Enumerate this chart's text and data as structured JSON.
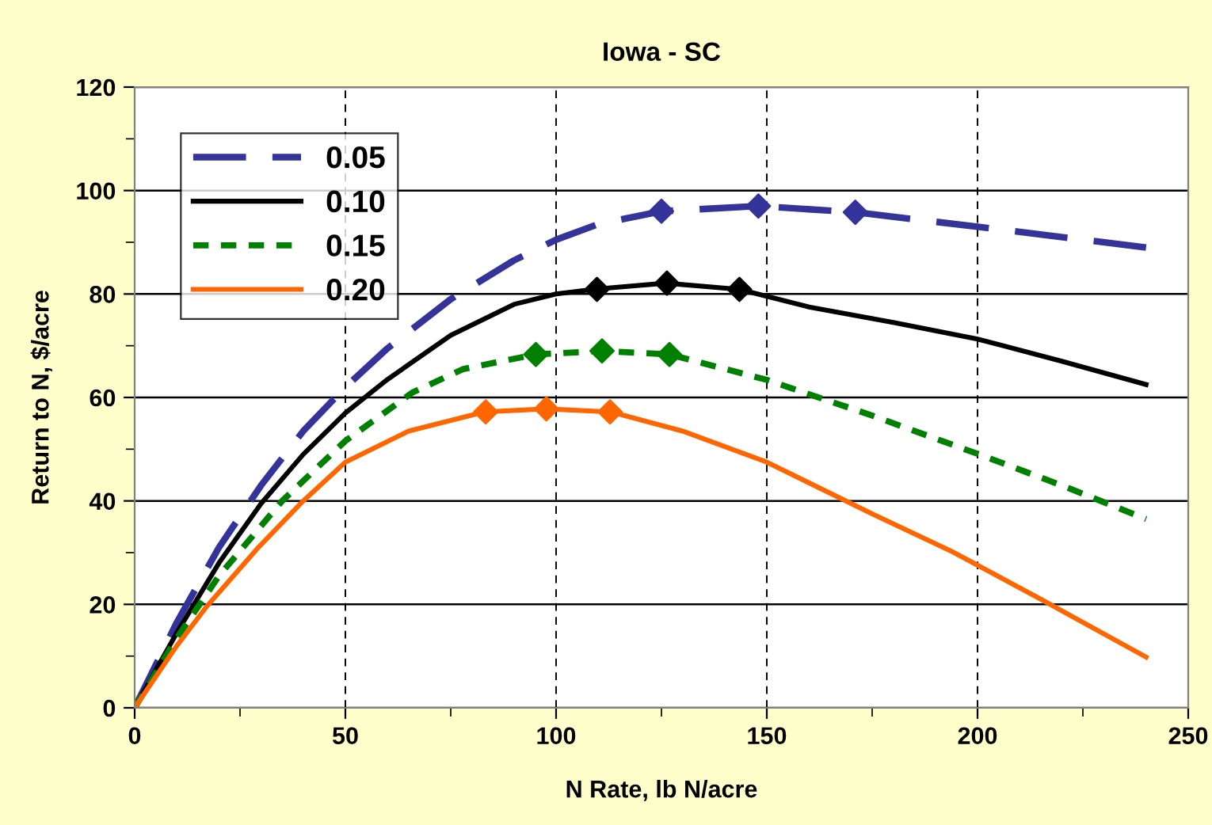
{
  "chart_data": {
    "type": "line",
    "title": "Iowa - SC",
    "xlabel": "N Rate, lb N/acre",
    "ylabel": "Return to N, $/acre",
    "xlim": [
      0,
      250
    ],
    "ylim": [
      0,
      120
    ],
    "xticks": [
      0,
      {
        "value": 25,
        "label": null
      },
      50,
      {
        "value": 75,
        "label": null
      },
      100,
      {
        "value": 125,
        "label": null
      },
      150,
      {
        "value": 175,
        "label": null
      },
      200,
      {
        "value": 225,
        "label": null
      },
      250
    ],
    "yticks": [
      0,
      {
        "value": 10,
        "label": null
      },
      20,
      {
        "value": 30,
        "label": null
      },
      40,
      {
        "value": 50,
        "label": null
      },
      60,
      {
        "value": 70,
        "label": null
      },
      80,
      {
        "value": 90,
        "label": null
      },
      100,
      {
        "value": 110,
        "label": null
      },
      120
    ],
    "grid": true,
    "legend": "top left",
    "series": [
      {
        "name": "0.05",
        "color": "#333399",
        "line_style": "dashed",
        "x": [
          0,
          10,
          20,
          30,
          40,
          50,
          60,
          75,
          90,
          100,
          110,
          125,
          148,
          171,
          200,
          240
        ],
        "values": [
          0,
          16.5,
          31,
          43,
          53.5,
          62,
          69.5,
          79,
          86.5,
          90.5,
          93.5,
          96,
          97,
          95.8,
          93,
          89
        ]
      },
      {
        "name": "0.10",
        "color": "#000000",
        "line_style": "solid",
        "x": [
          0,
          10,
          20,
          30,
          40,
          50,
          60,
          75,
          90,
          100,
          110,
          126,
          143.5,
          160,
          180,
          200,
          220,
          240
        ],
        "values": [
          0,
          14.5,
          28,
          39.5,
          49,
          57,
          63.5,
          72,
          78,
          80,
          81,
          82.1,
          80.9,
          77.5,
          74.5,
          71.3,
          67,
          62.5
        ]
      },
      {
        "name": "0.15",
        "color": "#008000",
        "line_style": "dotted",
        "x": [
          0,
          10,
          20,
          35,
          50,
          66,
          78,
          95,
          111,
          127,
          150,
          175,
          200,
          220,
          240
        ],
        "values": [
          0,
          13.5,
          25.5,
          40,
          51.6,
          61,
          65.5,
          68.3,
          69,
          68.3,
          63.4,
          56.5,
          49.1,
          43,
          36.5
        ]
      },
      {
        "name": "0.20",
        "color": "#ff6600",
        "line_style": "solid",
        "x": [
          0,
          10,
          17,
          29,
          40,
          50,
          65,
          83,
          97.7,
          113,
          130,
          150,
          175,
          194,
          215,
          240
        ],
        "values": [
          0,
          12,
          19.5,
          30.7,
          40,
          47.5,
          53.5,
          57.2,
          57.8,
          57.2,
          53.5,
          47.5,
          37.5,
          30.2,
          21,
          9.8
        ]
      },
      {
        "type": "scatter",
        "marker": "diamond",
        "color": "#333399",
        "x": [
          125,
          148,
          171
        ],
        "values": [
          96,
          97,
          95.8
        ]
      },
      {
        "type": "scatter",
        "marker": "diamond",
        "color": "#000000",
        "x": [
          109.7,
          126.3,
          143.5
        ],
        "values": [
          80.9,
          82.1,
          80.9
        ]
      },
      {
        "type": "scatter",
        "marker": "diamond",
        "color": "#008000",
        "x": [
          95.2,
          110.9,
          126.9
        ],
        "values": [
          68.3,
          69,
          68.3
        ]
      },
      {
        "type": "scatter",
        "marker": "diamond",
        "color": "#ff6600",
        "x": [
          83.3,
          97.7,
          112.8
        ],
        "values": [
          57.2,
          57.8,
          57.2
        ]
      }
    ]
  }
}
